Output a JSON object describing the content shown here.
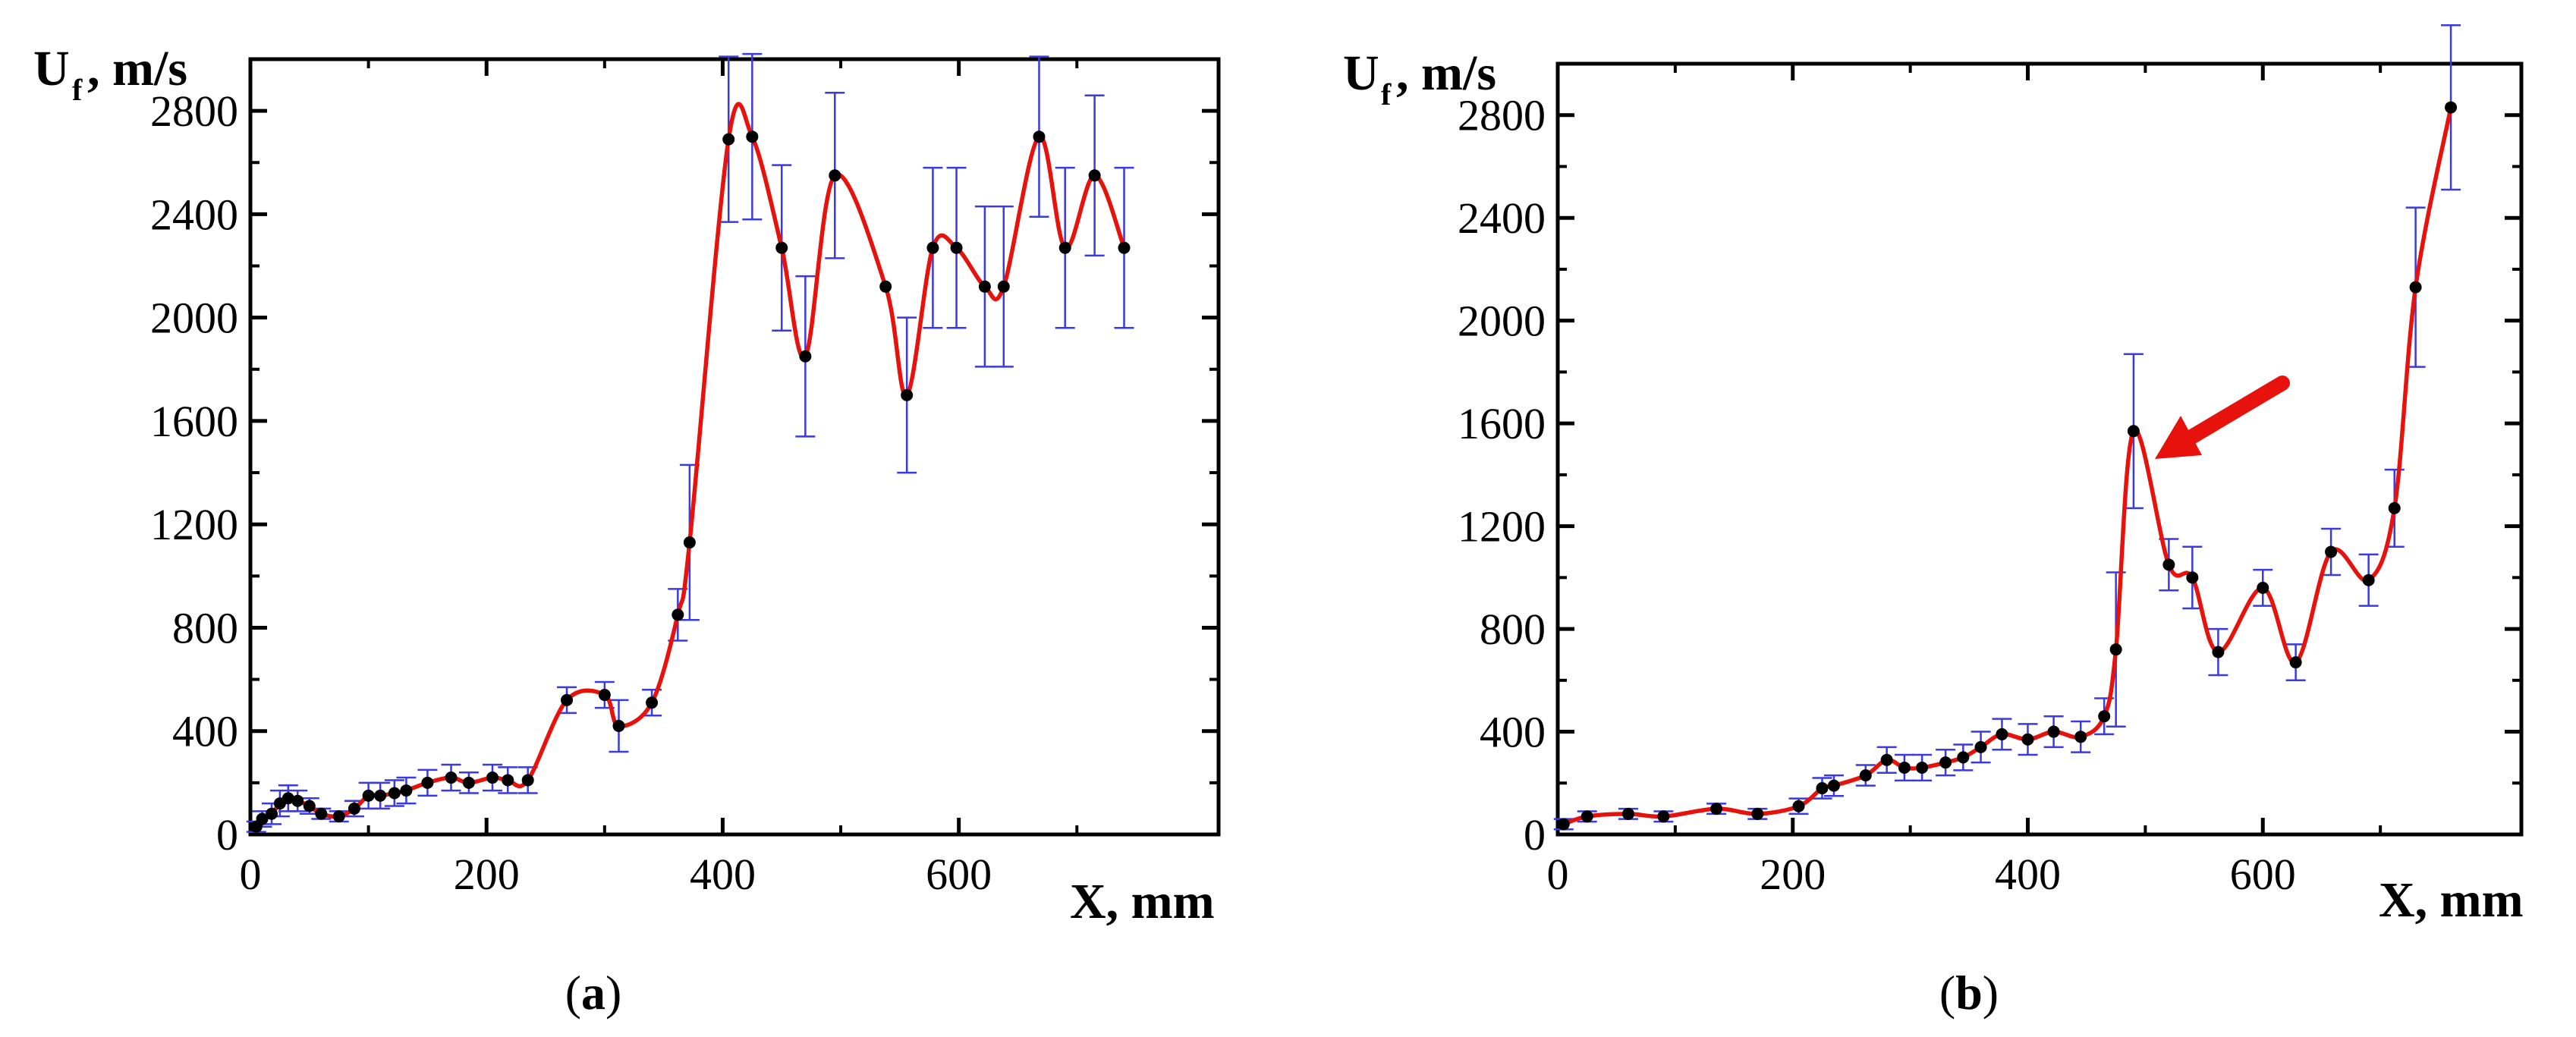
{
  "chart_data": [
    {
      "type": "line",
      "panel_label": "a",
      "ylabel_main": "U",
      "ylabel_sub": "f",
      "ylabel_rest": ", m/s",
      "xlabel": "X, mm",
      "xlim": [
        0,
        820
      ],
      "ylim": [
        0,
        3000
      ],
      "xticks": [
        0,
        200,
        400,
        600
      ],
      "yticks": [
        0,
        400,
        800,
        1200,
        1600,
        2000,
        2400,
        2800
      ],
      "colors": {
        "curve": "#e8120c",
        "errorbar": "#3a3ae0",
        "marker": "#000000"
      },
      "series": [
        {
          "name": "U_f",
          "x": [
            5,
            10,
            18,
            25,
            32,
            40,
            50,
            60,
            75,
            88,
            100,
            110,
            122,
            132,
            150,
            170,
            185,
            205,
            218,
            235,
            268,
            300,
            312,
            340,
            362,
            372,
            405,
            425,
            450,
            470,
            495,
            538,
            556,
            578,
            598,
            622,
            638,
            668,
            690,
            715,
            740
          ],
          "y": [
            30,
            60,
            80,
            120,
            140,
            130,
            110,
            80,
            70,
            100,
            150,
            150,
            160,
            170,
            200,
            220,
            200,
            220,
            210,
            210,
            520,
            540,
            420,
            510,
            850,
            1130,
            2690,
            2700,
            2270,
            1850,
            2550,
            2120,
            1700,
            2270,
            2270,
            2120,
            2120,
            2700,
            2270,
            2550,
            2270
          ],
          "err": [
            20,
            30,
            40,
            50,
            50,
            40,
            30,
            20,
            20,
            30,
            50,
            50,
            50,
            50,
            50,
            50,
            40,
            50,
            50,
            50,
            50,
            50,
            100,
            50,
            100,
            300,
            320,
            320,
            320,
            310,
            320,
            0,
            300,
            310,
            310,
            310,
            310,
            310,
            310,
            310,
            310
          ]
        }
      ]
    },
    {
      "type": "line",
      "panel_label": "b",
      "ylabel_main": "U",
      "ylabel_sub": "f",
      "ylabel_rest": ", m/s",
      "xlabel": "X, mm",
      "xlim": [
        0,
        820
      ],
      "ylim": [
        0,
        3000
      ],
      "xticks": [
        0,
        200,
        400,
        600
      ],
      "yticks": [
        0,
        400,
        800,
        1200,
        1600,
        2000,
        2400,
        2800
      ],
      "colors": {
        "curve": "#e8120c",
        "errorbar": "#3a3ae0",
        "marker": "#000000",
        "arrow": "#e8120c"
      },
      "series": [
        {
          "name": "U_f",
          "x": [
            5,
            25,
            60,
            90,
            135,
            170,
            205,
            225,
            235,
            262,
            280,
            295,
            310,
            330,
            345,
            360,
            378,
            400,
            422,
            445,
            465,
            475,
            490,
            520,
            540,
            562,
            600,
            628,
            658,
            690,
            712,
            730,
            760
          ],
          "y": [
            40,
            70,
            80,
            70,
            100,
            80,
            110,
            180,
            190,
            230,
            290,
            260,
            260,
            280,
            300,
            340,
            390,
            370,
            400,
            380,
            460,
            720,
            1570,
            1050,
            1000,
            710,
            960,
            670,
            1100,
            990,
            1270,
            2130,
            2830
          ],
          "err": [
            20,
            20,
            20,
            20,
            20,
            20,
            30,
            40,
            40,
            40,
            50,
            50,
            50,
            50,
            50,
            60,
            60,
            60,
            60,
            60,
            70,
            300,
            300,
            100,
            120,
            90,
            70,
            70,
            90,
            100,
            150,
            310,
            320
          ]
        }
      ]
    }
  ]
}
